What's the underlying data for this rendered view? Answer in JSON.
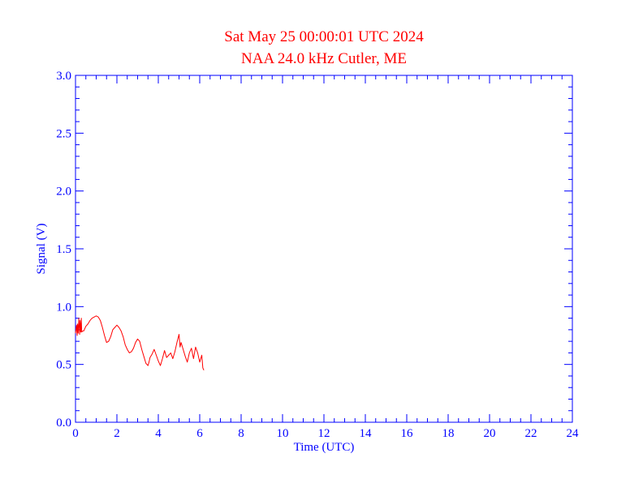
{
  "chart_data": {
    "type": "line",
    "title": "Sat May 25 00:00:01 UTC 2024",
    "subtitle": "NAA 24.0 kHz Cutler, ME",
    "xlabel": "Time (UTC)",
    "ylabel": "Signal (V)",
    "xlim": [
      0,
      24
    ],
    "ylim": [
      0,
      3.0
    ],
    "x_ticks": [
      "0",
      "2",
      "4",
      "6",
      "8",
      "10",
      "12",
      "14",
      "16",
      "18",
      "20",
      "22",
      "24"
    ],
    "y_ticks": [
      "0.0",
      "0.5",
      "1.0",
      "1.5",
      "2.0",
      "2.5",
      "3.0"
    ],
    "grid": false,
    "colors": {
      "axis": "#0000ff",
      "title": "#ff0000",
      "series": "#ff0000"
    },
    "series": [
      {
        "x": [
          0.0,
          0.05,
          0.08,
          0.1,
          0.13,
          0.16,
          0.2,
          0.22,
          0.25,
          0.28,
          0.3,
          0.35,
          0.4,
          0.45,
          0.5,
          0.6,
          0.7,
          0.8,
          0.9,
          1.0,
          1.1,
          1.2,
          1.3,
          1.4,
          1.5,
          1.6,
          1.7,
          1.8,
          1.9,
          2.0,
          2.1,
          2.2,
          2.3,
          2.4,
          2.5,
          2.6,
          2.7,
          2.8,
          2.9,
          3.0,
          3.1,
          3.2,
          3.3,
          3.4,
          3.5,
          3.55,
          3.6,
          3.7,
          3.8,
          3.9,
          4.0,
          4.1,
          4.2,
          4.3,
          4.4,
          4.5,
          4.6,
          4.7,
          4.8,
          4.9,
          5.0,
          5.05,
          5.1,
          5.2,
          5.3,
          5.4,
          5.5,
          5.6,
          5.7,
          5.8,
          5.9,
          6.0,
          6.1,
          6.15,
          6.2
        ],
        "y": [
          0.77,
          0.84,
          0.75,
          0.85,
          0.77,
          0.9,
          0.76,
          0.88,
          0.78,
          0.9,
          0.78,
          0.79,
          0.79,
          0.81,
          0.83,
          0.85,
          0.88,
          0.9,
          0.91,
          0.92,
          0.91,
          0.88,
          0.82,
          0.75,
          0.69,
          0.7,
          0.74,
          0.8,
          0.82,
          0.84,
          0.82,
          0.79,
          0.74,
          0.67,
          0.63,
          0.6,
          0.61,
          0.64,
          0.69,
          0.72,
          0.7,
          0.63,
          0.57,
          0.51,
          0.49,
          0.52,
          0.56,
          0.59,
          0.63,
          0.58,
          0.53,
          0.49,
          0.55,
          0.62,
          0.56,
          0.58,
          0.6,
          0.55,
          0.61,
          0.69,
          0.76,
          0.65,
          0.69,
          0.63,
          0.57,
          0.52,
          0.6,
          0.64,
          0.55,
          0.65,
          0.6,
          0.52,
          0.58,
          0.47,
          0.45
        ]
      }
    ]
  }
}
